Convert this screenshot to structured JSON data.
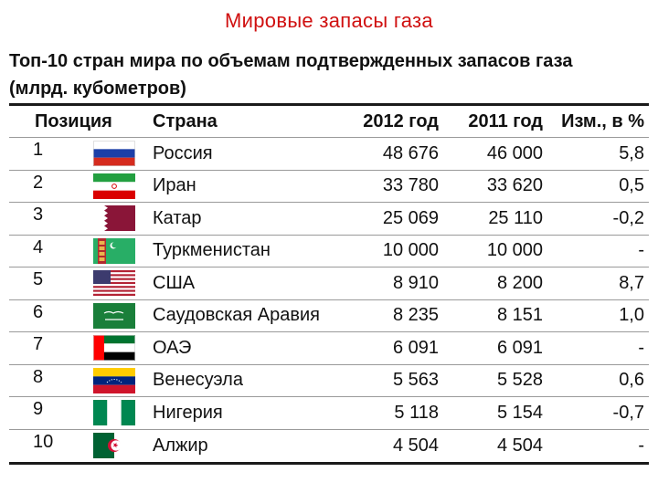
{
  "page": {
    "title": "Мировые запасы газа",
    "subtitle_line1": "Топ-10 стран мира по объемам подтвержденных запасов газа",
    "subtitle_line2": "(млрд. кубометров)"
  },
  "table": {
    "headers": {
      "position": "Позиция",
      "country": "Страна",
      "y2012": "2012 год",
      "y2011": "2011 год",
      "change": "Изм., в %"
    },
    "rows": [
      {
        "position": "1",
        "country": "Россия",
        "y2012": "48 676",
        "y2011": "46 000",
        "change": "5,8",
        "flag": "russia-flag-icon"
      },
      {
        "position": "2",
        "country": "Иран",
        "y2012": "33 780",
        "y2011": "33 620",
        "change": "0,5",
        "flag": "iran-flag-icon"
      },
      {
        "position": "3",
        "country": "Катар",
        "y2012": "25 069",
        "y2011": "25 110",
        "change": "-0,2",
        "flag": "qatar-flag-icon"
      },
      {
        "position": "4",
        "country": "Туркменистан",
        "y2012": "10 000",
        "y2011": "10 000",
        "change": "-",
        "flag": "turkmenistan-flag-icon"
      },
      {
        "position": "5",
        "country": "США",
        "y2012": "8 910",
        "y2011": "8 200",
        "change": "8,7",
        "flag": "usa-flag-icon"
      },
      {
        "position": "6",
        "country": "Саудовская Аравия",
        "y2012": "8 235",
        "y2011": "8 151",
        "change": "1,0",
        "flag": "saudi-arabia-flag-icon"
      },
      {
        "position": "7",
        "country": "ОАЭ",
        "y2012": "6 091",
        "y2011": "6 091",
        "change": "-",
        "flag": "uae-flag-icon"
      },
      {
        "position": "8",
        "country": "Венесуэла",
        "y2012": "5 563",
        "y2011": "5 528",
        "change": "0,6",
        "flag": "venezuela-flag-icon"
      },
      {
        "position": "9",
        "country": "Нигерия",
        "y2012": "5 118",
        "y2011": "5 154",
        "change": "-0,7",
        "flag": "nigeria-flag-icon"
      },
      {
        "position": "10",
        "country": "Алжир",
        "y2012": "4 504",
        "y2011": "4 504",
        "change": "-",
        "flag": "algeria-flag-icon"
      }
    ]
  }
}
